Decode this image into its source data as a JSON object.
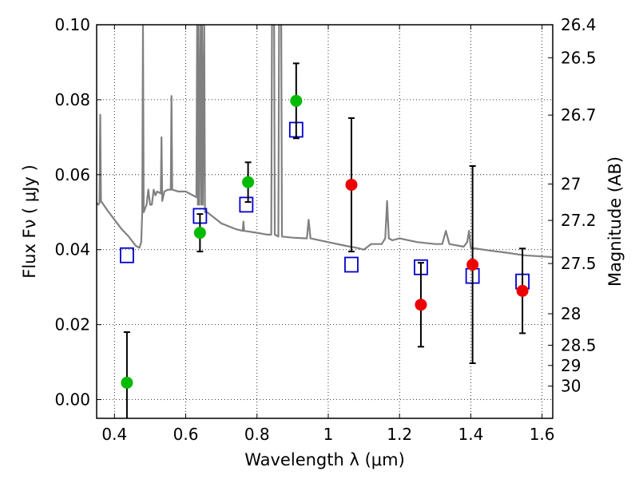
{
  "chart_data": {
    "type": "scatter",
    "xlabel": "Wavelength  λ (μm)",
    "ylabel": "Flux  Fν  ( μJy )",
    "ylabel_right": "Magnitude (AB)",
    "xlim": [
      0.35,
      1.63
    ],
    "ylim": [
      -0.005,
      0.1
    ],
    "grid": true,
    "x_ticks": [
      {
        "value": 0.4,
        "label": "0.4"
      },
      {
        "value": 0.6,
        "label": "0.6"
      },
      {
        "value": 0.8,
        "label": "0.8"
      },
      {
        "value": 1.0,
        "label": "1"
      },
      {
        "value": 1.2,
        "label": "1.2"
      },
      {
        "value": 1.4,
        "label": "1.4"
      },
      {
        "value": 1.6,
        "label": "1.6"
      }
    ],
    "y_ticks": [
      {
        "value": 0.0,
        "label": "0.00"
      },
      {
        "value": 0.02,
        "label": "0.02"
      },
      {
        "value": 0.04,
        "label": "0.04"
      },
      {
        "value": 0.06,
        "label": "0.06"
      },
      {
        "value": 0.08,
        "label": "0.08"
      },
      {
        "value": 0.1,
        "label": "0.10"
      }
    ],
    "magnitude_ticks": [
      {
        "value": 0.1,
        "label": "26.4"
      },
      {
        "value": 0.0912,
        "label": "26.5"
      },
      {
        "value": 0.0759,
        "label": "26.7"
      },
      {
        "value": 0.0575,
        "label": "27"
      },
      {
        "value": 0.0478,
        "label": "27.2"
      },
      {
        "value": 0.0363,
        "label": "27.5"
      },
      {
        "value": 0.0229,
        "label": "28"
      },
      {
        "value": 0.0145,
        "label": "28.5"
      },
      {
        "value": 0.0091,
        "label": "29"
      },
      {
        "value": 0.0036,
        "label": "30"
      }
    ],
    "series": [
      {
        "marker": "line",
        "color": "#808080",
        "points": [
          [
            0.35,
            0.0525
          ],
          [
            0.355,
            0.052
          ],
          [
            0.358,
            0.0525
          ],
          [
            0.36,
            0.076
          ],
          [
            0.362,
            0.053
          ],
          [
            0.38,
            0.0505
          ],
          [
            0.4,
            0.048
          ],
          [
            0.42,
            0.0455
          ],
          [
            0.44,
            0.0435
          ],
          [
            0.46,
            0.041
          ],
          [
            0.47,
            0.0405
          ],
          [
            0.475,
            0.042
          ],
          [
            0.478,
            0.05
          ],
          [
            0.48,
            0.1
          ],
          [
            0.482,
            0.05
          ],
          [
            0.49,
            0.052
          ],
          [
            0.495,
            0.056
          ],
          [
            0.5,
            0.052
          ],
          [
            0.505,
            0.052
          ],
          [
            0.51,
            0.056
          ],
          [
            0.515,
            0.0545
          ],
          [
            0.52,
            0.0555
          ],
          [
            0.53,
            0.055
          ],
          [
            0.532,
            0.07
          ],
          [
            0.534,
            0.053
          ],
          [
            0.54,
            0.0555
          ],
          [
            0.55,
            0.056
          ],
          [
            0.558,
            0.056
          ],
          [
            0.56,
            0.081
          ],
          [
            0.562,
            0.056
          ],
          [
            0.58,
            0.0555
          ],
          [
            0.6,
            0.0555
          ],
          [
            0.62,
            0.0545
          ],
          [
            0.63,
            0.054
          ],
          [
            0.632,
            0.1
          ],
          [
            0.634,
            0.052
          ],
          [
            0.636,
            0.1
          ],
          [
            0.638,
            0.052
          ],
          [
            0.642,
            0.1
          ],
          [
            0.644,
            0.052
          ],
          [
            0.646,
            0.1
          ],
          [
            0.648,
            0.052
          ],
          [
            0.652,
            0.1
          ],
          [
            0.654,
            0.05
          ],
          [
            0.66,
            0.05
          ],
          [
            0.7,
            0.047
          ],
          [
            0.74,
            0.0455
          ],
          [
            0.76,
            0.045
          ],
          [
            0.762,
            0.0475
          ],
          [
            0.764,
            0.045
          ],
          [
            0.8,
            0.0445
          ],
          [
            0.83,
            0.044
          ],
          [
            0.84,
            0.044
          ],
          [
            0.842,
            0.1
          ],
          [
            0.848,
            0.1
          ],
          [
            0.85,
            0.044
          ],
          [
            0.86,
            0.0435
          ],
          [
            0.862,
            0.1
          ],
          [
            0.868,
            0.1
          ],
          [
            0.87,
            0.0435
          ],
          [
            0.9,
            0.0432
          ],
          [
            0.94,
            0.043
          ],
          [
            0.945,
            0.048
          ],
          [
            0.95,
            0.043
          ],
          [
            1.0,
            0.042
          ],
          [
            1.05,
            0.041
          ],
          [
            1.08,
            0.0405
          ],
          [
            1.1,
            0.04
          ],
          [
            1.12,
            0.0415
          ],
          [
            1.15,
            0.0415
          ],
          [
            1.16,
            0.043
          ],
          [
            1.165,
            0.053
          ],
          [
            1.17,
            0.043
          ],
          [
            1.18,
            0.0425
          ],
          [
            1.2,
            0.043
          ],
          [
            1.25,
            0.042
          ],
          [
            1.3,
            0.0415
          ],
          [
            1.32,
            0.0415
          ],
          [
            1.33,
            0.045
          ],
          [
            1.34,
            0.0415
          ],
          [
            1.38,
            0.0408
          ],
          [
            1.39,
            0.042
          ],
          [
            1.395,
            0.045
          ],
          [
            1.4,
            0.0405
          ],
          [
            1.45,
            0.0398
          ],
          [
            1.5,
            0.0392
          ],
          [
            1.55,
            0.0385
          ],
          [
            1.6,
            0.0382
          ],
          [
            1.63,
            0.038
          ]
        ]
      },
      {
        "marker": "square",
        "color": "#0000cc",
        "points": [
          [
            0.435,
            0.0385
          ],
          [
            0.64,
            0.049
          ],
          [
            0.77,
            0.052
          ],
          [
            0.91,
            0.072
          ],
          [
            1.065,
            0.036
          ],
          [
            1.26,
            0.0353
          ],
          [
            1.405,
            0.033
          ],
          [
            1.545,
            0.0315
          ]
        ]
      },
      {
        "marker": "circle",
        "color": "#00bb00",
        "points": [
          [
            0.435,
            0.0045,
            0.0135
          ],
          [
            0.64,
            0.0445,
            0.005
          ],
          [
            0.775,
            0.058,
            0.0053
          ],
          [
            0.91,
            0.0797,
            0.01
          ]
        ]
      },
      {
        "marker": "circle",
        "color": "#ee0000",
        "points": [
          [
            1.065,
            0.0573,
            0.0178
          ],
          [
            1.26,
            0.0253,
            0.0112
          ],
          [
            1.405,
            0.036,
            0.0263
          ],
          [
            1.545,
            0.029,
            0.0113
          ]
        ]
      }
    ]
  }
}
